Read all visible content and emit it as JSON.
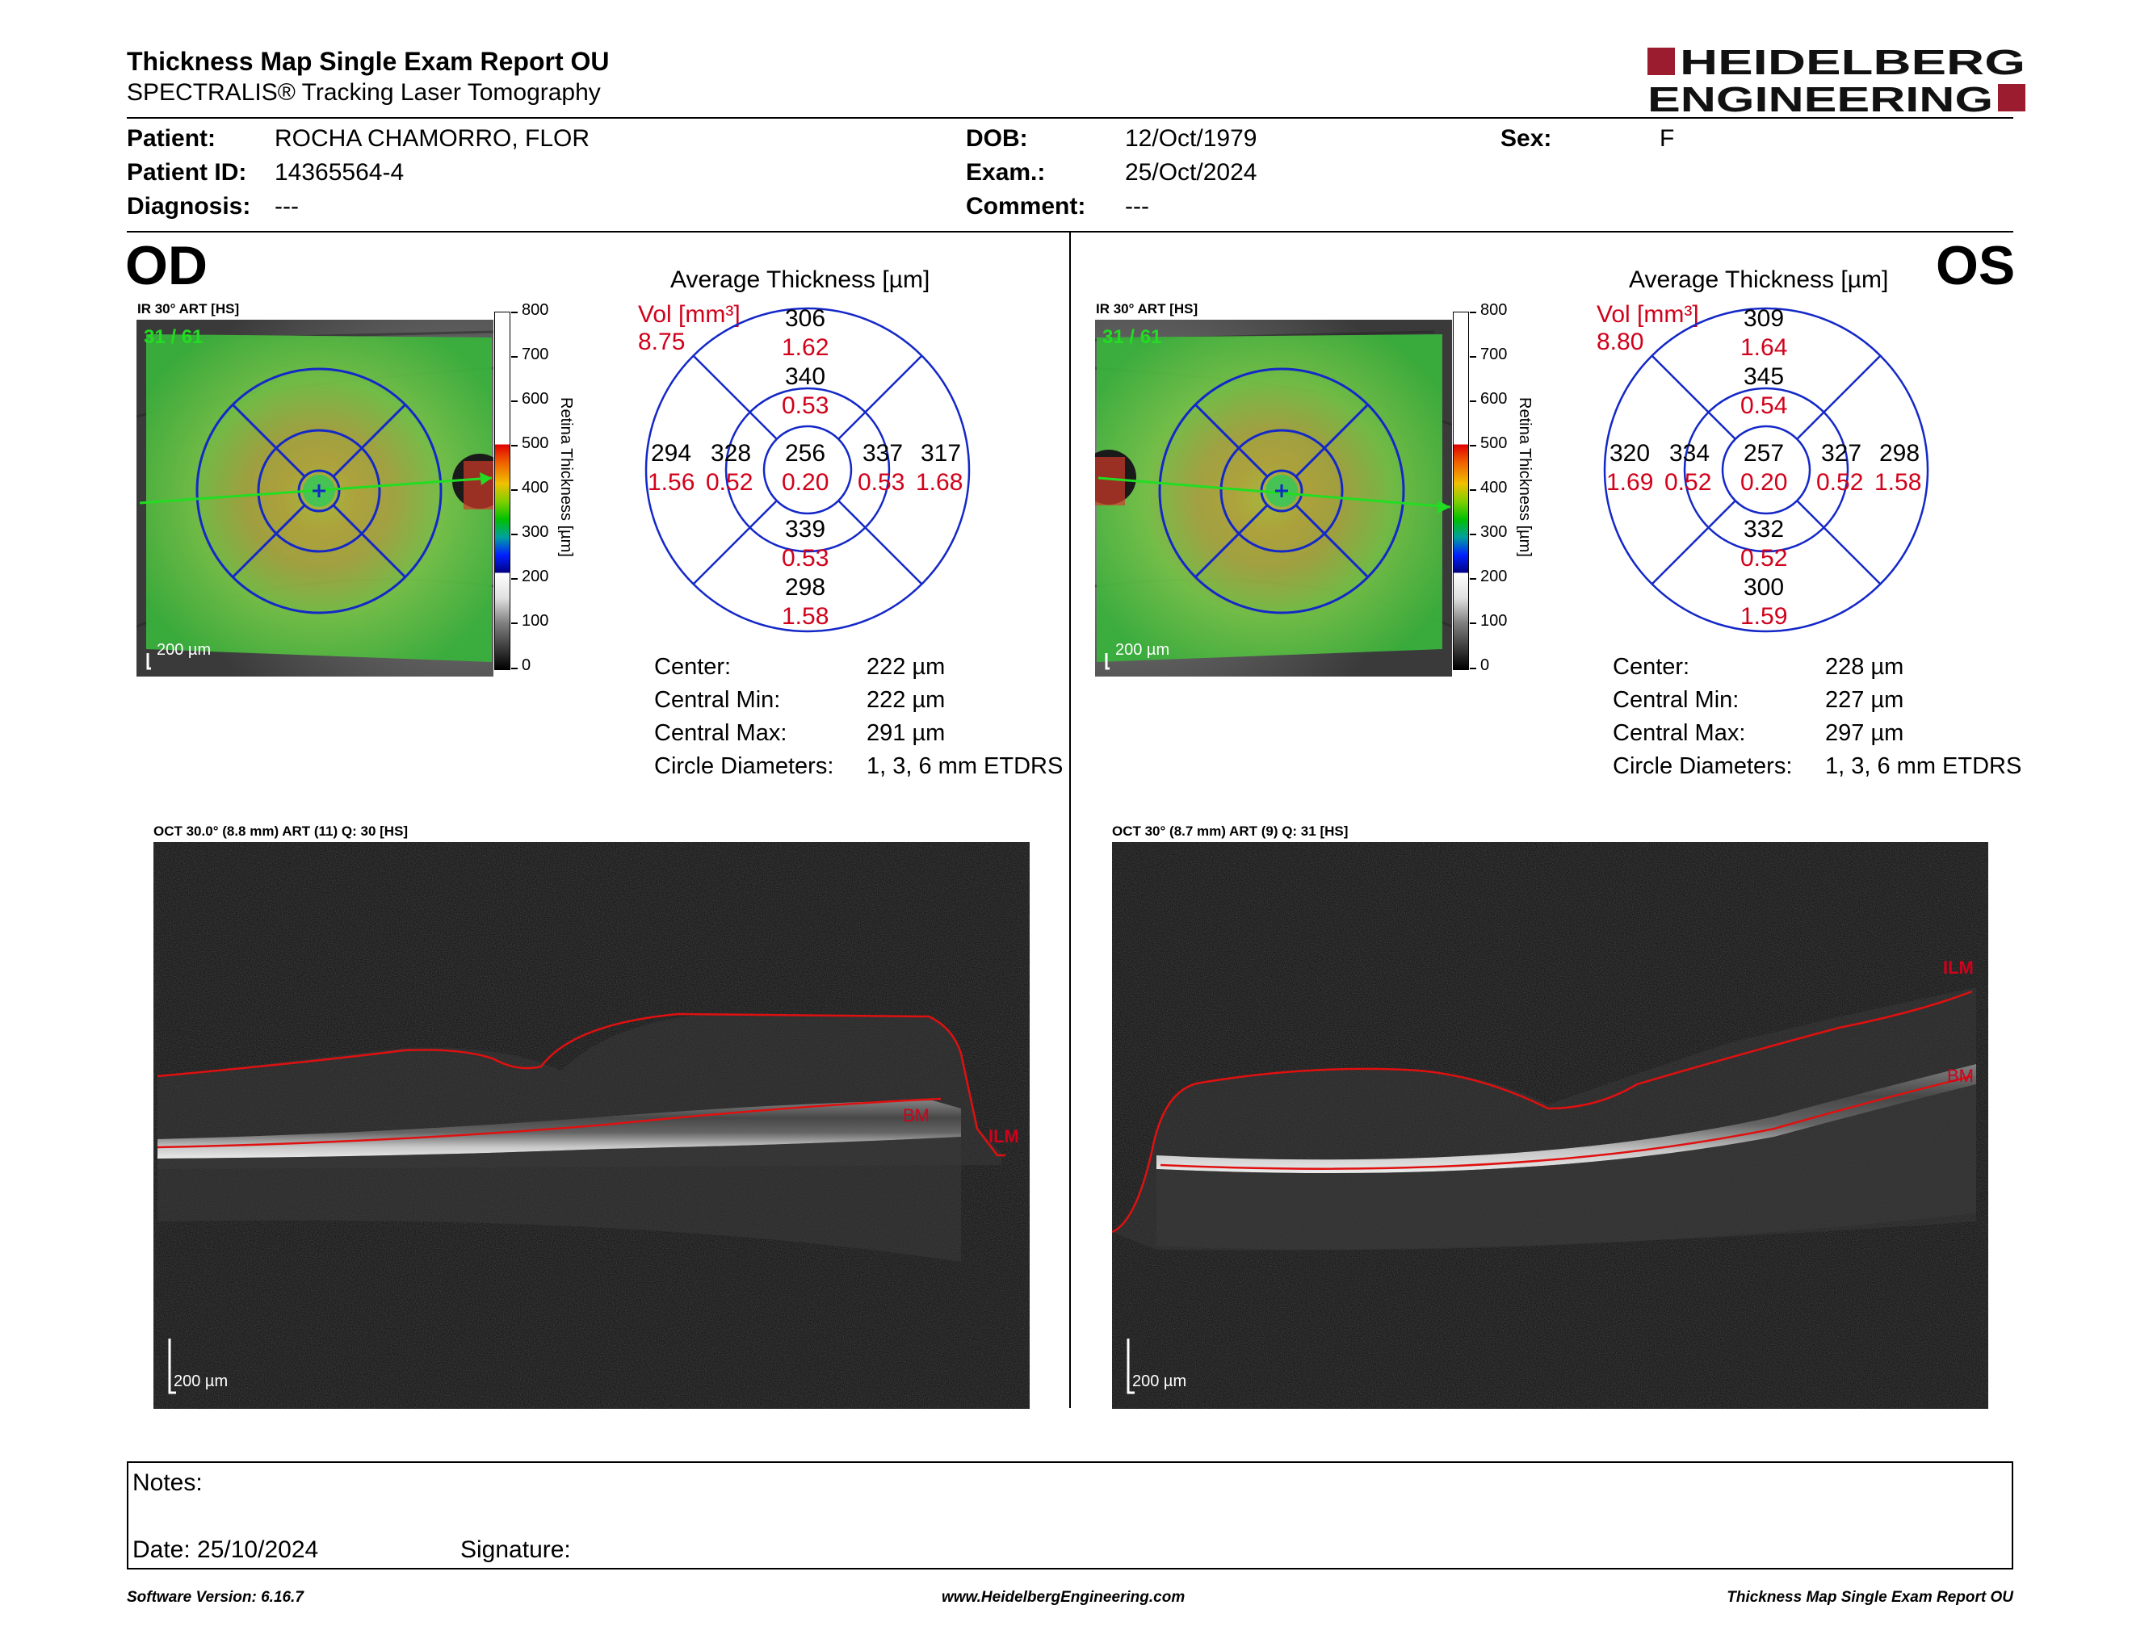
{
  "header": {
    "title": "Thickness Map Single Exam Report OU",
    "subtitle": "SPECTRALIS® Tracking Laser Tomography",
    "logo_line1": "HEIDELBERG",
    "logo_line2": "ENGINEERING"
  },
  "patient": {
    "patient_label": "Patient:",
    "patient_value": "ROCHA CHAMORRO, FLOR",
    "id_label": "Patient ID:",
    "id_value": "14365564-4",
    "diagnosis_label": "Diagnosis:",
    "diagnosis_value": "---",
    "dob_label": "DOB:",
    "dob_value": "12/Oct/1979",
    "exam_label": "Exam.:",
    "exam_value": "25/Oct/2024",
    "comment_label": "Comment:",
    "comment_value": "---",
    "sex_label": "Sex:",
    "sex_value": "F"
  },
  "colorbar": {
    "ticks": [
      "800",
      "700",
      "600",
      "500",
      "400",
      "300",
      "200",
      "100",
      "0"
    ],
    "label": "Retina  Thickness [µm]"
  },
  "stat_labels": {
    "center": "Center:",
    "central_min": "Central Min:",
    "central_max": "Central Max:",
    "circle_diameters": "Circle Diameters:"
  },
  "avg_title": "Average Thickness [µm]",
  "vol_label": "Vol [mm³]",
  "scale_label": "200 µm",
  "od": {
    "eye": "OD",
    "fundus_label": "IR 30° ART [HS]",
    "scan_counter": "31 / 61",
    "oct_label": "OCT 30.0° (8.8 mm) ART (11) Q: 30 [HS]",
    "vol_total": "8.75",
    "etdrs": {
      "center": {
        "thickness": "256",
        "volume": "0.20"
      },
      "inner_superior": {
        "thickness": "340",
        "volume": "0.53"
      },
      "inner_inferior": {
        "thickness": "339",
        "volume": "0.53"
      },
      "inner_left": {
        "thickness": "328",
        "volume": "0.52"
      },
      "inner_right": {
        "thickness": "337",
        "volume": "0.53"
      },
      "outer_superior": {
        "thickness": "306",
        "volume": "1.62"
      },
      "outer_inferior": {
        "thickness": "298",
        "volume": "1.58"
      },
      "outer_left": {
        "thickness": "294",
        "volume": "1.56"
      },
      "outer_right": {
        "thickness": "317",
        "volume": "1.68"
      }
    },
    "stats": {
      "center": "222 µm",
      "central_min": "222 µm",
      "central_max": "291 µm",
      "circle_diameters": "1, 3, 6 mm ETDRS"
    },
    "layer_labels": {
      "bm": "BM",
      "ilm": "ILM"
    }
  },
  "os": {
    "eye": "OS",
    "fundus_label": "IR 30° ART [HS]",
    "scan_counter": "31 / 61",
    "oct_label": "OCT 30° (8.7 mm) ART (9) Q: 31 [HS]",
    "vol_total": "8.80",
    "etdrs": {
      "center": {
        "thickness": "257",
        "volume": "0.20"
      },
      "inner_superior": {
        "thickness": "345",
        "volume": "0.54"
      },
      "inner_inferior": {
        "thickness": "332",
        "volume": "0.52"
      },
      "inner_left": {
        "thickness": "334",
        "volume": "0.52"
      },
      "inner_right": {
        "thickness": "327",
        "volume": "0.52"
      },
      "outer_superior": {
        "thickness": "309",
        "volume": "1.64"
      },
      "outer_inferior": {
        "thickness": "300",
        "volume": "1.59"
      },
      "outer_left": {
        "thickness": "320",
        "volume": "1.69"
      },
      "outer_right": {
        "thickness": "298",
        "volume": "1.58"
      }
    },
    "stats": {
      "center": "228 µm",
      "central_min": "227 µm",
      "central_max": "297 µm",
      "circle_diameters": "1, 3, 6 mm ETDRS"
    },
    "layer_labels": {
      "bm": "BM",
      "ilm": "ILM"
    }
  },
  "notes": {
    "notes_label": "Notes:",
    "date_label": "Date: 25/10/2024",
    "signature_label": "Signature:"
  },
  "footer": {
    "software": "Software Version: 6.16.7",
    "website": "www.HeidelbergEngineering.com",
    "report_name": "Thickness Map Single Exam Report OU"
  },
  "colors": {
    "red": "#d0021b",
    "logo_red": "#9b1c2e",
    "etdrs_blue": "#1428c8",
    "scan_green": "#22dd22"
  }
}
